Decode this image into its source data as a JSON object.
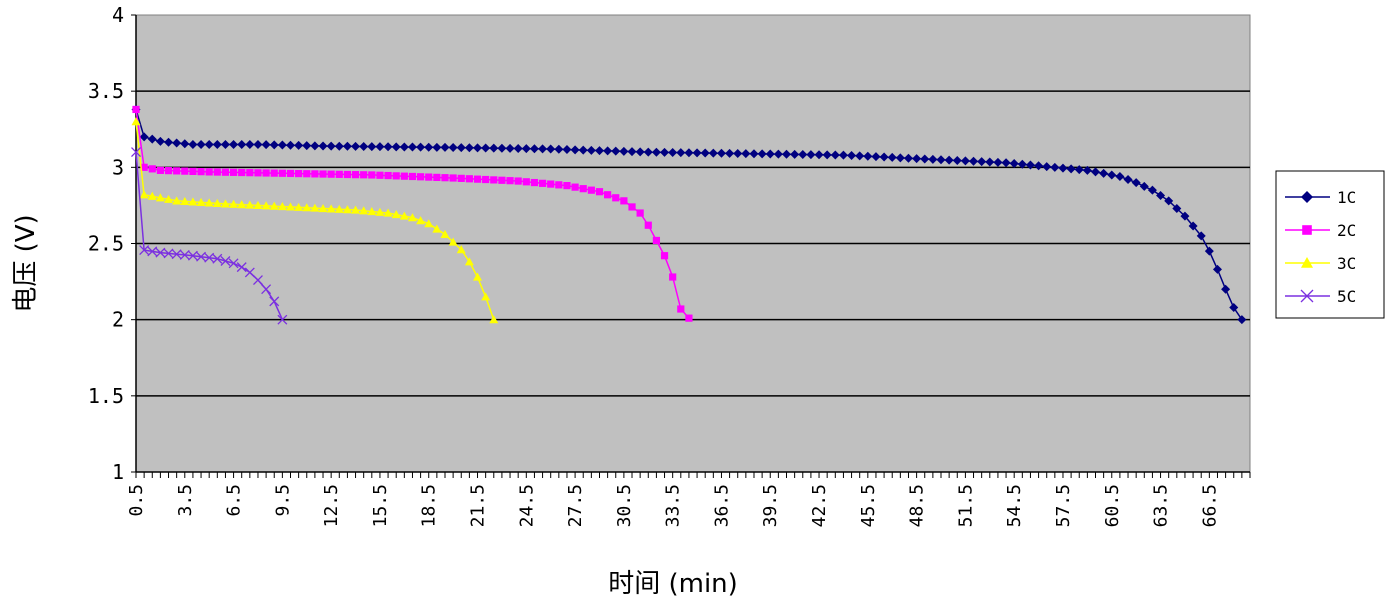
{
  "chart_data": {
    "type": "line",
    "xlabel": "时间 (min)",
    "ylabel": "电压 (V)",
    "ylim": [
      1,
      4
    ],
    "yticks": [
      "1",
      "1.5",
      "2",
      "2.5",
      "3",
      "3.5",
      "4"
    ],
    "xticks": [
      "0.5",
      "3.5",
      "6.5",
      "9.5",
      "12.5",
      "15.5",
      "18.5",
      "21.5",
      "24.5",
      "27.5",
      "30.5",
      "33.5",
      "36.5",
      "39.5",
      "42.5",
      "45.5",
      "48.5",
      "51.5",
      "54.5",
      "57.5",
      "60.5",
      "63.5",
      "66.5"
    ],
    "x_step_min": 0.5,
    "grid": "horizontal",
    "legend_position": "right",
    "plot_background": "#c0c0c0",
    "series": [
      {
        "name": "1C",
        "color": "#000080",
        "marker": "diamond",
        "points": [
          [
            0.5,
            3.38
          ],
          [
            1,
            3.2
          ],
          [
            2,
            3.17
          ],
          [
            4,
            3.15
          ],
          [
            8,
            3.15
          ],
          [
            12,
            3.14
          ],
          [
            20,
            3.13
          ],
          [
            26,
            3.12
          ],
          [
            32,
            3.1
          ],
          [
            38,
            3.09
          ],
          [
            44,
            3.08
          ],
          [
            50,
            3.05
          ],
          [
            54,
            3.03
          ],
          [
            57,
            3.0
          ],
          [
            59,
            2.98
          ],
          [
            61,
            2.94
          ],
          [
            62,
            2.9
          ],
          [
            63,
            2.85
          ],
          [
            64,
            2.78
          ],
          [
            65,
            2.68
          ],
          [
            66,
            2.55
          ],
          [
            66.5,
            2.45
          ],
          [
            67,
            2.33
          ],
          [
            67.5,
            2.2
          ],
          [
            68,
            2.08
          ],
          [
            68.5,
            2.0
          ]
        ]
      },
      {
        "name": "2C",
        "color": "#ff00ff",
        "marker": "square",
        "points": [
          [
            0.5,
            3.38
          ],
          [
            1,
            3.0
          ],
          [
            2,
            2.98
          ],
          [
            5,
            2.97
          ],
          [
            10,
            2.96
          ],
          [
            15,
            2.95
          ],
          [
            20,
            2.93
          ],
          [
            24,
            2.91
          ],
          [
            27,
            2.88
          ],
          [
            29,
            2.84
          ],
          [
            30.5,
            2.78
          ],
          [
            31.5,
            2.7
          ],
          [
            32,
            2.62
          ],
          [
            32.5,
            2.52
          ],
          [
            33,
            2.42
          ],
          [
            33.5,
            2.28
          ],
          [
            33.8,
            2.15
          ],
          [
            34,
            2.07
          ],
          [
            34.5,
            2.01
          ]
        ]
      },
      {
        "name": "3C",
        "color": "#ffff00",
        "marker": "triangle",
        "points": [
          [
            0.5,
            3.3
          ],
          [
            1,
            2.82
          ],
          [
            3,
            2.78
          ],
          [
            6,
            2.76
          ],
          [
            10,
            2.74
          ],
          [
            14,
            2.72
          ],
          [
            16,
            2.7
          ],
          [
            17.5,
            2.67
          ],
          [
            18.5,
            2.63
          ],
          [
            19.5,
            2.56
          ],
          [
            20.5,
            2.46
          ],
          [
            21,
            2.38
          ],
          [
            21.5,
            2.28
          ],
          [
            22,
            2.15
          ],
          [
            22.5,
            2.0
          ]
        ]
      },
      {
        "name": "5C",
        "color": "#7b30e0",
        "marker": "x",
        "points": [
          [
            0.5,
            3.1
          ],
          [
            0.8,
            2.46
          ],
          [
            2,
            2.44
          ],
          [
            4,
            2.42
          ],
          [
            5.5,
            2.4
          ],
          [
            6.5,
            2.37
          ],
          [
            7.3,
            2.33
          ],
          [
            8,
            2.26
          ],
          [
            8.5,
            2.2
          ],
          [
            9,
            2.12
          ],
          [
            9.3,
            2.06
          ],
          [
            9.5,
            2.0
          ]
        ]
      }
    ]
  }
}
